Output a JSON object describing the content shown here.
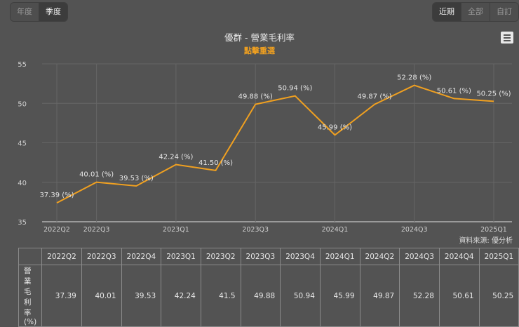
{
  "period_toggle": {
    "options": [
      {
        "label": "年度",
        "active": false
      },
      {
        "label": "季度",
        "active": true
      }
    ]
  },
  "range_toggle": {
    "options": [
      {
        "label": "近期",
        "active": true
      },
      {
        "label": "全部",
        "active": false
      },
      {
        "label": "自訂",
        "active": false
      }
    ]
  },
  "chart": {
    "title": "優群 - 營業毛利率",
    "subtitle": "點擊重選",
    "menu_icon": "hamburger-menu-icon",
    "source": "資料來源: 優分析",
    "line_color": "#f0a020"
  },
  "chart_data": {
    "type": "line",
    "title": "優群 - 營業毛利率",
    "subtitle": "點擊重選",
    "xlabel": "",
    "ylabel": "",
    "categories": [
      "2022Q2",
      "2022Q3",
      "2022Q4",
      "2023Q1",
      "2023Q2",
      "2023Q3",
      "2023Q4",
      "2024Q1",
      "2024Q2",
      "2024Q3",
      "2024Q4",
      "2025Q1"
    ],
    "x_tick_labels": [
      "2022Q2",
      "2022Q3",
      "2023Q1",
      "2023Q3",
      "2024Q1",
      "2024Q3",
      "2025Q1"
    ],
    "y_ticks": [
      35,
      40,
      45,
      50,
      55
    ],
    "ylim": [
      35,
      55
    ],
    "grid": true,
    "series": [
      {
        "name": "營業毛利率(%)",
        "color": "#f0a020",
        "values": [
          37.39,
          40.01,
          39.53,
          42.24,
          41.5,
          49.88,
          50.94,
          45.99,
          49.87,
          52.28,
          50.61,
          50.25
        ],
        "data_labels": [
          "37.39 (%)",
          "40.01 (%)",
          "39.53 (%)",
          "42.24 (%)",
          "41.50 (%)",
          "49.88 (%)",
          "50.94 (%)",
          "45.99 (%)",
          "49.87 (%)",
          "52.28 (%)",
          "50.61 (%)",
          "50.25 (%)"
        ]
      }
    ]
  },
  "table": {
    "headers": [
      "",
      "2022Q2",
      "2022Q3",
      "2022Q4",
      "2023Q1",
      "2023Q2",
      "2023Q3",
      "2023Q4",
      "2024Q1",
      "2024Q2",
      "2024Q3",
      "2024Q4",
      "2025Q1"
    ],
    "row_label": "營業毛利率(%)",
    "values": [
      "37.39",
      "40.01",
      "39.53",
      "42.24",
      "41.5",
      "49.88",
      "50.94",
      "45.99",
      "49.87",
      "52.28",
      "50.61",
      "50.25"
    ]
  }
}
